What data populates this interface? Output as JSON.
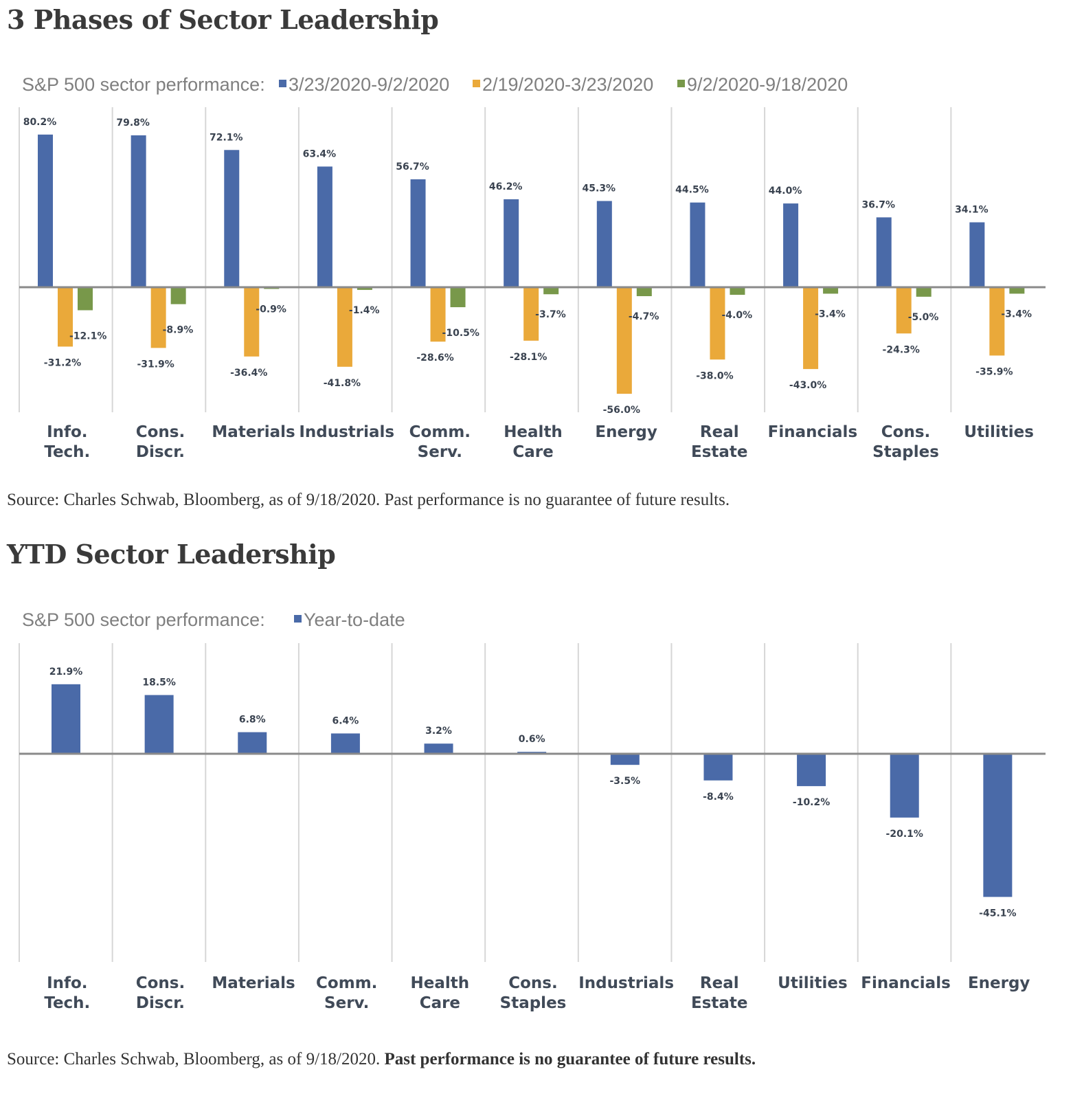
{
  "page": {
    "heading1": "3 Phases of Sector Leadership",
    "source1": "Source: Charles Schwab, Bloomberg, as of 9/18/2020. Past performance is no guarantee of future results.",
    "heading2": "YTD Sector Leadership",
    "source2_prefix": "Source: Charles Schwab, Bloomberg, as of 9/18/2020. ",
    "source2_bold": "Past performance is no guarantee of future results."
  },
  "chart_data": [
    {
      "type": "bar",
      "title": "3 Phases of Sector Leadership",
      "legend_prefix": "S&P 500 sector performance:",
      "legend_position": "top-left",
      "xlabel": "",
      "ylabel": "",
      "ylim": [
        -65,
        95
      ],
      "grid": "vertical category separators",
      "categories": [
        [
          "Info.",
          "Tech."
        ],
        [
          "Cons.",
          "Discr."
        ],
        [
          "Materials"
        ],
        [
          "Industrials"
        ],
        [
          "Comm.",
          "Serv."
        ],
        [
          "Health",
          "Care"
        ],
        [
          "Energy"
        ],
        [
          "Real",
          "Estate"
        ],
        [
          "Financials"
        ],
        [
          "Cons.",
          "Staples"
        ],
        [
          "Utilities"
        ]
      ],
      "series": [
        {
          "name": "3/23/2020-9/2/2020",
          "color": "#4a6aa8",
          "values": [
            80.2,
            79.8,
            72.1,
            63.4,
            56.7,
            46.2,
            45.3,
            44.5,
            44.0,
            36.7,
            34.1
          ],
          "labels": [
            "80.2%",
            "79.8%",
            "72.1%",
            "63.4%",
            "56.7%",
            "46.2%",
            "45.3%",
            "44.5%",
            "44.0%",
            "36.7%",
            "34.1%"
          ]
        },
        {
          "name": "2/19/2020-3/23/2020",
          "color": "#eaa93a",
          "values": [
            -31.2,
            -31.9,
            -36.4,
            -41.8,
            -28.6,
            -28.1,
            -56.0,
            -38.0,
            -43.0,
            -24.3,
            -35.9
          ],
          "labels": [
            "-31.2%",
            "-31.9%",
            "-36.4%",
            "-41.8%",
            "-28.6%",
            "-28.1%",
            "-56.0%",
            "-38.0%",
            "-43.0%",
            "-24.3%",
            "-35.9%"
          ]
        },
        {
          "name": "9/2/2020-9/18/2020",
          "color": "#78984a",
          "values": [
            -12.1,
            -8.9,
            -0.9,
            -1.4,
            -10.5,
            -3.7,
            -4.7,
            -4.0,
            -3.4,
            -5.0,
            -3.4
          ],
          "labels": [
            "-12.1%",
            "-8.9%",
            "-0.9%",
            "-1.4%",
            "-10.5%",
            "-3.7%",
            "-4.7%",
            "-4.0%",
            "-3.4%",
            "-5.0%",
            "-3.4%"
          ]
        }
      ]
    },
    {
      "type": "bar",
      "title": "YTD Sector Leadership",
      "legend_prefix": "S&P 500 sector performance:",
      "legend_position": "top-left",
      "xlabel": "",
      "ylabel": "",
      "ylim": [
        -65,
        35
      ],
      "grid": "vertical category separators",
      "categories": [
        [
          "Info.",
          "Tech."
        ],
        [
          "Cons.",
          "Discr."
        ],
        [
          "Materials"
        ],
        [
          "Comm.",
          "Serv."
        ],
        [
          "Health",
          "Care"
        ],
        [
          "Cons.",
          "Staples"
        ],
        [
          "Industrials"
        ],
        [
          "Real",
          "Estate"
        ],
        [
          "Utilities"
        ],
        [
          "Financials"
        ],
        [
          "Energy"
        ]
      ],
      "series": [
        {
          "name": "Year-to-date",
          "color": "#4a6aa8",
          "values": [
            21.9,
            18.5,
            6.8,
            6.4,
            3.2,
            0.6,
            -3.5,
            -8.4,
            -10.2,
            -20.1,
            -45.1
          ],
          "labels": [
            "21.9%",
            "18.5%",
            "6.8%",
            "6.4%",
            "3.2%",
            "0.6%",
            "-3.5%",
            "-8.4%",
            "-10.2%",
            "-20.1%",
            "-45.1%"
          ]
        }
      ]
    }
  ]
}
